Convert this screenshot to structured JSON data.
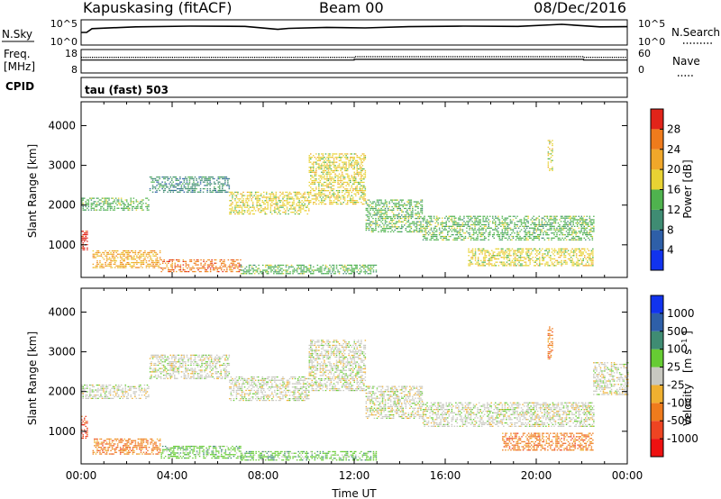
{
  "header": {
    "title": "Kapuskasing (fitACF)",
    "beam": "Beam 00",
    "date": "08/Dec/2016"
  },
  "summary_panels": {
    "nsky": {
      "label": "N.Sky",
      "ticks": [
        "10^5",
        "10^0"
      ],
      "right_label": "N.Search",
      "right_ticks": [
        "10^5",
        "10^0"
      ],
      "right_style": "dotted",
      "trace": [
        [
          0,
          0.5
        ],
        [
          0.01,
          0.5
        ],
        [
          0.02,
          0.65
        ],
        [
          0.1,
          0.72
        ],
        [
          0.2,
          0.75
        ],
        [
          0.3,
          0.74
        ],
        [
          0.36,
          0.62
        ],
        [
          0.38,
          0.66
        ],
        [
          0.45,
          0.7
        ],
        [
          0.52,
          0.68
        ],
        [
          0.6,
          0.73
        ],
        [
          0.7,
          0.75
        ],
        [
          0.8,
          0.74
        ],
        [
          0.88,
          0.82
        ],
        [
          0.95,
          0.72
        ],
        [
          1.0,
          0.73
        ]
      ]
    },
    "freq": {
      "label": "Freq.",
      "unit": "[MHz]",
      "ticks": [
        "18",
        "8"
      ],
      "right_label": "Nave",
      "right_ticks": [
        "60",
        "0"
      ],
      "right_style": "dotted",
      "trace": [
        [
          0,
          0.55
        ],
        [
          0.5,
          0.55
        ],
        [
          0.5,
          0.58
        ],
        [
          0.92,
          0.58
        ],
        [
          0.92,
          0.55
        ],
        [
          1.0,
          0.55
        ]
      ]
    },
    "cpid": {
      "label": "CPID",
      "value": "tau (fast) 503"
    }
  },
  "chart_data": [
    {
      "type": "heatmap",
      "name": "power",
      "xlabel": "",
      "ylabel": "Slant Range [km]",
      "xlim": [
        0,
        24
      ],
      "ylim": [
        180,
        4600
      ],
      "yticks": [
        1000,
        2000,
        3000,
        4000
      ],
      "colorbar_label": "Power [dB]",
      "colorbar_ticks": [
        "4",
        "8",
        "12",
        "16",
        "20",
        "24",
        "28"
      ],
      "colors": [
        "#1133ee",
        "#2e5fa8",
        "#3f8c73",
        "#4fb34e",
        "#e8d233",
        "#f0a72a",
        "#ef7b1c",
        "#e1241a"
      ],
      "bands": [
        {
          "t0": 0.0,
          "t1": 3.0,
          "r0": 1850,
          "r1": 2150,
          "level": 3
        },
        {
          "t0": 3.0,
          "t1": 6.5,
          "r0": 2300,
          "r1": 2700,
          "level": 2
        },
        {
          "t0": 6.5,
          "t1": 10.0,
          "r0": 1750,
          "r1": 2300,
          "level": 4
        },
        {
          "t0": 10.0,
          "t1": 12.5,
          "r0": 2000,
          "r1": 3300,
          "level": 4
        },
        {
          "t0": 12.5,
          "t1": 15.0,
          "r0": 1300,
          "r1": 2100,
          "level": 3
        },
        {
          "t0": 15.0,
          "t1": 22.5,
          "r0": 1100,
          "r1": 1700,
          "level": 3
        },
        {
          "t0": 0.0,
          "t1": 0.3,
          "r0": 850,
          "r1": 1350,
          "level": 7
        },
        {
          "t0": 0.5,
          "t1": 3.5,
          "r0": 400,
          "r1": 850,
          "level": 5
        },
        {
          "t0": 3.5,
          "t1": 7.0,
          "r0": 300,
          "r1": 600,
          "level": 6
        },
        {
          "t0": 7.0,
          "t1": 13.0,
          "r0": 250,
          "r1": 500,
          "level": 3
        },
        {
          "t0": 17.0,
          "t1": 22.5,
          "r0": 450,
          "r1": 900,
          "level": 4
        },
        {
          "t0": 20.5,
          "t1": 20.7,
          "r0": 2800,
          "r1": 3600,
          "level": 4
        }
      ]
    },
    {
      "type": "heatmap",
      "name": "velocity",
      "xlabel": "Time UT",
      "ylabel": "Slant Range [km]",
      "xlim": [
        0,
        24
      ],
      "ylim": [
        180,
        4600
      ],
      "xticks": [
        "00:00",
        "04:00",
        "08:00",
        "12:00",
        "16:00",
        "20:00",
        "00:00"
      ],
      "yticks": [
        1000,
        2000,
        3000,
        4000
      ],
      "colorbar_label": "Velocity",
      "colorbar_unit": "[m s",
      "colorbar_unit_sup": "-1",
      "colorbar_ticks": [
        "1000",
        "500",
        "100",
        "25",
        "-25",
        "-100",
        "-500",
        "-1000"
      ],
      "colors": [
        "#1133ee",
        "#2e5fa8",
        "#3f8c73",
        "#66cc33",
        "#c8c8c0",
        "#f0b030",
        "#ef7b1c",
        "#ee4422",
        "#ee1111"
      ],
      "bands": [
        {
          "t0": 0.0,
          "t1": 3.0,
          "r0": 1800,
          "r1": 2150,
          "level": 4
        },
        {
          "t0": 3.0,
          "t1": 6.5,
          "r0": 2300,
          "r1": 2900,
          "level": 4
        },
        {
          "t0": 6.5,
          "t1": 10.0,
          "r0": 1750,
          "r1": 2350,
          "level": 4
        },
        {
          "t0": 10.0,
          "t1": 12.5,
          "r0": 2000,
          "r1": 3300,
          "level": 4
        },
        {
          "t0": 12.5,
          "t1": 15.0,
          "r0": 1300,
          "r1": 2100,
          "level": 4
        },
        {
          "t0": 15.0,
          "t1": 22.5,
          "r0": 1100,
          "r1": 1700,
          "level": 4
        },
        {
          "t0": 22.5,
          "t1": 24.0,
          "r0": 1900,
          "r1": 2700,
          "level": 4
        },
        {
          "t0": 0.0,
          "t1": 0.3,
          "r0": 800,
          "r1": 1350,
          "level": 7
        },
        {
          "t0": 0.5,
          "t1": 3.5,
          "r0": 400,
          "r1": 800,
          "level": 6
        },
        {
          "t0": 3.5,
          "t1": 7.0,
          "r0": 300,
          "r1": 600,
          "level": 3
        },
        {
          "t0": 7.0,
          "t1": 13.0,
          "r0": 250,
          "r1": 500,
          "level": 3
        },
        {
          "t0": 18.5,
          "t1": 22.5,
          "r0": 500,
          "r1": 950,
          "level": 6
        },
        {
          "t0": 20.5,
          "t1": 20.7,
          "r0": 2800,
          "r1": 3600,
          "level": 6
        }
      ]
    }
  ]
}
